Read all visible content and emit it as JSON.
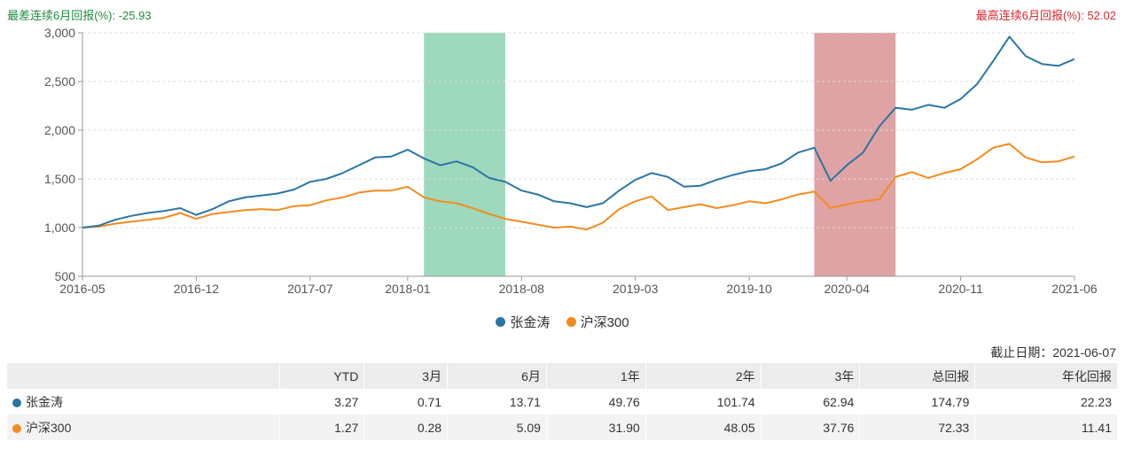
{
  "header": {
    "worst_label": "最差连续6月回报(%)",
    "worst_value": "-25.93",
    "best_label": "最高连续6月回报(%)",
    "best_value": "52.02"
  },
  "colors": {
    "fund": "#2a76a3",
    "index": "#f38b1e",
    "worst_band": "#9ed8bd",
    "best_band": "#e0a3a4",
    "worst_text": "#1e8c3a",
    "best_text": "#d9262c"
  },
  "chart_data": {
    "type": "line",
    "title": "",
    "xlabel": "",
    "ylabel": "",
    "ylim": [
      500,
      3000
    ],
    "yticks": [
      500,
      1000,
      1500,
      2000,
      2500,
      3000
    ],
    "ytick_labels": [
      "500",
      "1,000",
      "1,500",
      "2,000",
      "2,500",
      "3,000"
    ],
    "xlim": [
      "2016-05",
      "2021-06"
    ],
    "xticks": [
      "2016-05",
      "2016-12",
      "2017-07",
      "2018-01",
      "2018-08",
      "2019-03",
      "2019-10",
      "2020-04",
      "2020-11",
      "2021-06"
    ],
    "grid": "horizontal-dashed",
    "legend": "bottom-center",
    "highlights": [
      {
        "start": "2018-02",
        "end": "2018-07",
        "kind": "worst"
      },
      {
        "start": "2020-02",
        "end": "2020-07",
        "kind": "best"
      }
    ],
    "x": [
      "2016-05",
      "2016-06",
      "2016-07",
      "2016-08",
      "2016-09",
      "2016-10",
      "2016-11",
      "2016-12",
      "2017-01",
      "2017-02",
      "2017-03",
      "2017-04",
      "2017-05",
      "2017-06",
      "2017-07",
      "2017-08",
      "2017-09",
      "2017-10",
      "2017-11",
      "2017-12",
      "2018-01",
      "2018-02",
      "2018-03",
      "2018-04",
      "2018-05",
      "2018-06",
      "2018-07",
      "2018-08",
      "2018-09",
      "2018-10",
      "2018-11",
      "2018-12",
      "2019-01",
      "2019-02",
      "2019-03",
      "2019-04",
      "2019-05",
      "2019-06",
      "2019-07",
      "2019-08",
      "2019-09",
      "2019-10",
      "2019-11",
      "2019-12",
      "2020-01",
      "2020-02",
      "2020-03",
      "2020-04",
      "2020-05",
      "2020-06",
      "2020-07",
      "2020-08",
      "2020-09",
      "2020-10",
      "2020-11",
      "2020-12",
      "2021-01",
      "2021-02",
      "2021-03",
      "2021-04",
      "2021-05",
      "2021-06"
    ],
    "series": [
      {
        "name": "张金涛",
        "values": [
          1000,
          1020,
          1080,
          1120,
          1150,
          1170,
          1200,
          1130,
          1190,
          1270,
          1310,
          1330,
          1350,
          1390,
          1470,
          1500,
          1560,
          1640,
          1720,
          1730,
          1800,
          1710,
          1640,
          1680,
          1620,
          1510,
          1470,
          1380,
          1340,
          1270,
          1250,
          1210,
          1250,
          1380,
          1490,
          1560,
          1520,
          1420,
          1430,
          1490,
          1540,
          1580,
          1600,
          1660,
          1770,
          1820,
          1480,
          1640,
          1770,
          2040,
          2230,
          2210,
          2260,
          2230,
          2320,
          2470,
          2710,
          2960,
          2760,
          2680,
          2660,
          2730
        ]
      },
      {
        "name": "沪深300",
        "values": [
          1000,
          1010,
          1040,
          1060,
          1080,
          1100,
          1150,
          1090,
          1140,
          1160,
          1180,
          1190,
          1180,
          1220,
          1230,
          1280,
          1310,
          1360,
          1380,
          1380,
          1420,
          1310,
          1270,
          1250,
          1200,
          1140,
          1090,
          1060,
          1030,
          1000,
          1010,
          980,
          1050,
          1190,
          1270,
          1320,
          1180,
          1210,
          1240,
          1200,
          1230,
          1270,
          1250,
          1290,
          1340,
          1370,
          1200,
          1240,
          1270,
          1290,
          1520,
          1570,
          1510,
          1560,
          1600,
          1700,
          1820,
          1860,
          1720,
          1670,
          1680,
          1730
        ]
      }
    ]
  },
  "legend": {
    "fund_label": "张金涛",
    "index_label": "沪深300"
  },
  "table": {
    "as_of": "截止日期：2021-06-07",
    "headers": [
      "",
      "YTD",
      "3月",
      "6月",
      "1年",
      "2年",
      "3年",
      "总回报",
      "年化回报"
    ],
    "rows": [
      {
        "name": "张金涛",
        "values": [
          "3.27",
          "0.71",
          "13.71",
          "49.76",
          "101.74",
          "62.94",
          "174.79",
          "22.23"
        ]
      },
      {
        "name": "沪深300",
        "values": [
          "1.27",
          "0.28",
          "5.09",
          "31.90",
          "48.05",
          "37.76",
          "72.33",
          "11.41"
        ]
      }
    ]
  }
}
